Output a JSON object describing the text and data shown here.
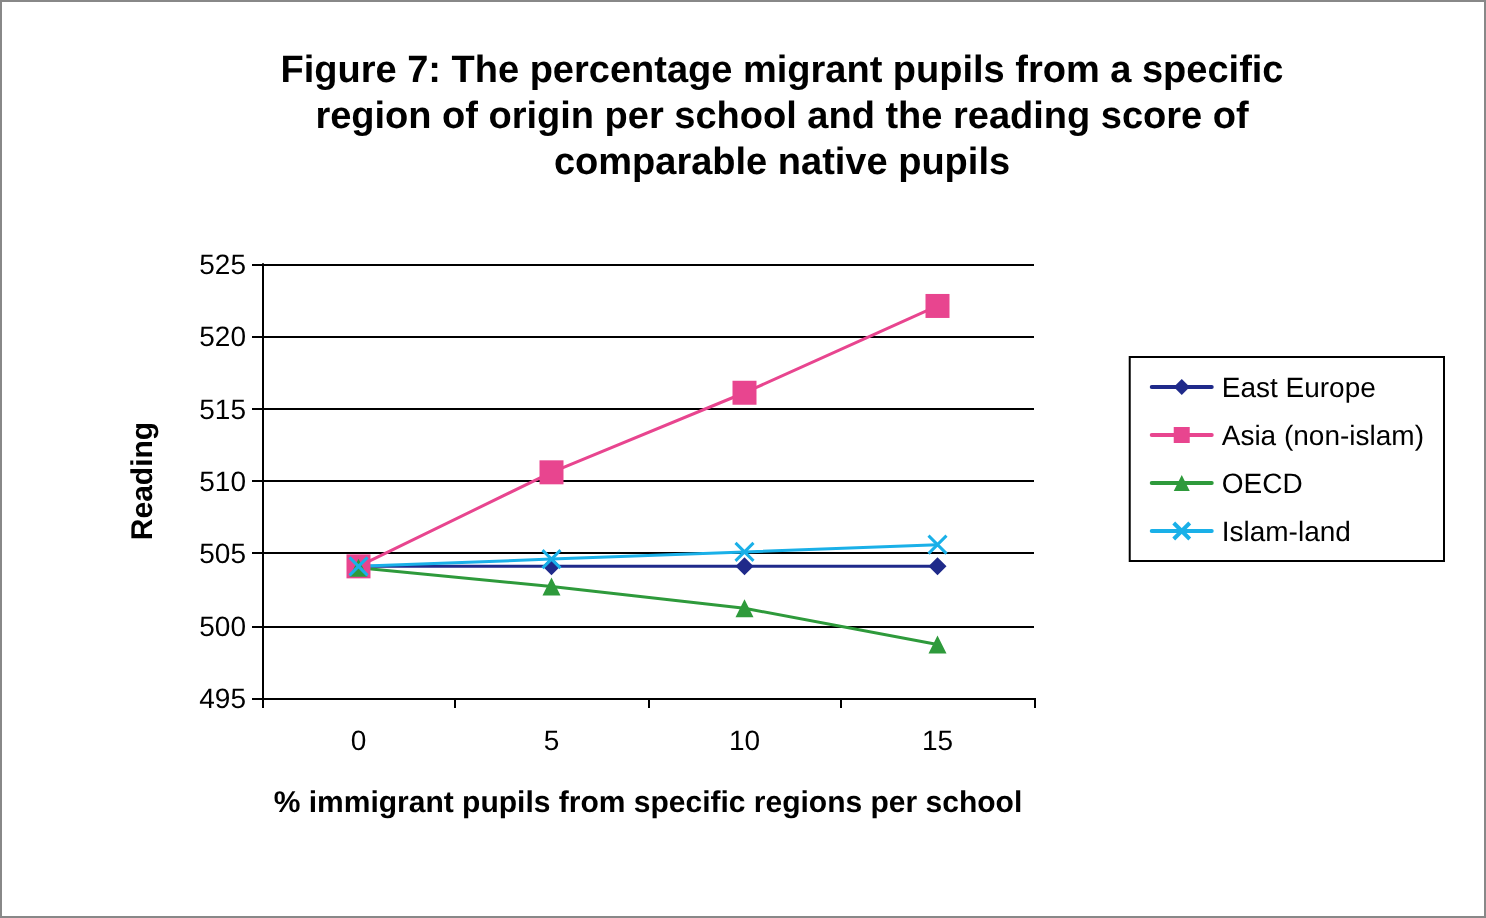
{
  "chart_data": {
    "type": "line",
    "title": "Figure 7: The percentage migrant pupils from a specific\nregion of origin per school and the reading score of\ncomparable native pupils",
    "xlabel": "% immigrant pupils from specific regions per school",
    "ylabel": "Reading",
    "categories": [
      "0",
      "5",
      "10",
      "15"
    ],
    "series": [
      {
        "name": "East Europe",
        "color": "#1f2a8a",
        "marker": "diamond",
        "values": [
          504.1,
          504.1,
          504.1,
          504.1
        ]
      },
      {
        "name": "Asia (non-islam)",
        "color": "#e8458f",
        "marker": "square",
        "values": [
          504.1,
          510.6,
          516.1,
          522.1
        ]
      },
      {
        "name": "OECD",
        "color": "#2e9a3b",
        "marker": "triangle",
        "values": [
          504.0,
          502.7,
          501.2,
          498.7
        ]
      },
      {
        "name": "Islam-land",
        "color": "#1ab0e8",
        "marker": "cross",
        "values": [
          504.1,
          504.6,
          505.1,
          505.6
        ]
      }
    ],
    "ylim": [
      495,
      525
    ],
    "yticks": [
      495,
      500,
      505,
      510,
      515,
      520,
      525
    ],
    "grid": "y",
    "legend": "right"
  }
}
